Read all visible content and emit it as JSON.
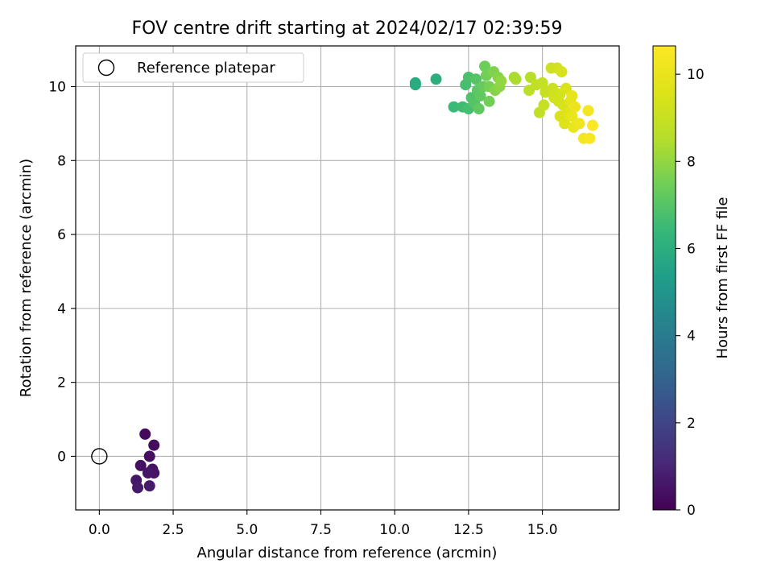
{
  "chart_data": {
    "type": "scatter",
    "title": "FOV centre drift starting at 2024/02/17 02:39:59",
    "xlabel": "Angular distance from reference (arcmin)",
    "ylabel": "Rotation from reference (arcmin)",
    "colorbar_label": "Hours from first FF file",
    "colormap": "viridis",
    "xlim": [
      -0.8,
      17.6
    ],
    "ylim": [
      -1.45,
      11.1
    ],
    "clim": [
      0,
      10.65
    ],
    "x_ticks": [
      0.0,
      2.5,
      5.0,
      7.5,
      10.0,
      12.5,
      15.0
    ],
    "x_tick_labels": [
      "0.0",
      "2.5",
      "5.0",
      "7.5",
      "10.0",
      "12.5",
      "15.0"
    ],
    "y_ticks": [
      0,
      2,
      4,
      6,
      8,
      10
    ],
    "y_tick_labels": [
      "0",
      "2",
      "4",
      "6",
      "8",
      "10"
    ],
    "colorbar_ticks": [
      0,
      2,
      4,
      6,
      8,
      10
    ],
    "colorbar_tick_labels": [
      "0",
      "2",
      "4",
      "6",
      "8",
      "10"
    ],
    "grid": true,
    "legend": {
      "placement": "top-left",
      "entries": [
        "Reference platepar"
      ]
    },
    "reference_point": {
      "name": "Reference platepar",
      "x": 0.0,
      "y": 0.0
    },
    "points": [
      {
        "x": 1.55,
        "y": 0.6,
        "c": 0.2
      },
      {
        "x": 1.85,
        "y": 0.3,
        "c": 0.3
      },
      {
        "x": 1.7,
        "y": 0.0,
        "c": 0.35
      },
      {
        "x": 1.4,
        "y": -0.25,
        "c": 0.4
      },
      {
        "x": 1.8,
        "y": -0.35,
        "c": 0.45
      },
      {
        "x": 1.85,
        "y": -0.45,
        "c": 0.5
      },
      {
        "x": 1.65,
        "y": -0.45,
        "c": 0.55
      },
      {
        "x": 1.25,
        "y": -0.65,
        "c": 0.6
      },
      {
        "x": 1.3,
        "y": -0.85,
        "c": 0.65
      },
      {
        "x": 1.7,
        "y": -0.8,
        "c": 0.7
      },
      {
        "x": 10.7,
        "y": 10.1,
        "c": 5.8
      },
      {
        "x": 10.7,
        "y": 10.05,
        "c": 5.9
      },
      {
        "x": 11.4,
        "y": 10.2,
        "c": 6.0
      },
      {
        "x": 12.0,
        "y": 9.45,
        "c": 6.5
      },
      {
        "x": 12.3,
        "y": 9.45,
        "c": 6.6
      },
      {
        "x": 12.4,
        "y": 10.05,
        "c": 6.7
      },
      {
        "x": 12.5,
        "y": 9.4,
        "c": 6.7
      },
      {
        "x": 12.5,
        "y": 10.25,
        "c": 6.8
      },
      {
        "x": 12.6,
        "y": 9.7,
        "c": 6.9
      },
      {
        "x": 12.7,
        "y": 9.55,
        "c": 7.0
      },
      {
        "x": 12.75,
        "y": 10.2,
        "c": 7.0
      },
      {
        "x": 12.8,
        "y": 9.9,
        "c": 7.1
      },
      {
        "x": 12.85,
        "y": 9.4,
        "c": 7.2
      },
      {
        "x": 12.9,
        "y": 9.75,
        "c": 7.2
      },
      {
        "x": 13.0,
        "y": 10.0,
        "c": 7.3
      },
      {
        "x": 13.05,
        "y": 10.55,
        "c": 7.4
      },
      {
        "x": 13.1,
        "y": 10.3,
        "c": 7.5
      },
      {
        "x": 13.2,
        "y": 9.6,
        "c": 7.5
      },
      {
        "x": 13.2,
        "y": 10.0,
        "c": 7.6
      },
      {
        "x": 13.35,
        "y": 10.4,
        "c": 7.7
      },
      {
        "x": 13.4,
        "y": 9.9,
        "c": 7.8
      },
      {
        "x": 13.5,
        "y": 10.25,
        "c": 7.8
      },
      {
        "x": 13.55,
        "y": 10.0,
        "c": 7.9
      },
      {
        "x": 13.6,
        "y": 10.15,
        "c": 8.0
      },
      {
        "x": 14.05,
        "y": 10.25,
        "c": 8.3
      },
      {
        "x": 14.1,
        "y": 10.2,
        "c": 8.4
      },
      {
        "x": 14.6,
        "y": 10.25,
        "c": 8.6
      },
      {
        "x": 14.55,
        "y": 9.9,
        "c": 8.7
      },
      {
        "x": 14.8,
        "y": 10.05,
        "c": 8.8
      },
      {
        "x": 14.9,
        "y": 9.3,
        "c": 8.8
      },
      {
        "x": 15.0,
        "y": 10.1,
        "c": 8.9
      },
      {
        "x": 15.05,
        "y": 9.5,
        "c": 9.0
      },
      {
        "x": 15.1,
        "y": 9.85,
        "c": 9.0
      },
      {
        "x": 15.3,
        "y": 10.5,
        "c": 9.1
      },
      {
        "x": 15.35,
        "y": 9.95,
        "c": 9.1
      },
      {
        "x": 15.4,
        "y": 9.7,
        "c": 9.2
      },
      {
        "x": 15.5,
        "y": 10.5,
        "c": 9.2
      },
      {
        "x": 15.55,
        "y": 9.6,
        "c": 9.3
      },
      {
        "x": 15.6,
        "y": 9.8,
        "c": 9.3
      },
      {
        "x": 15.65,
        "y": 10.4,
        "c": 9.4
      },
      {
        "x": 15.7,
        "y": 9.5,
        "c": 9.4
      },
      {
        "x": 15.6,
        "y": 9.2,
        "c": 9.5
      },
      {
        "x": 15.8,
        "y": 9.95,
        "c": 9.5
      },
      {
        "x": 15.75,
        "y": 9.0,
        "c": 9.6
      },
      {
        "x": 15.85,
        "y": 9.3,
        "c": 9.7
      },
      {
        "x": 15.95,
        "y": 9.6,
        "c": 9.8
      },
      {
        "x": 16.0,
        "y": 9.75,
        "c": 9.9
      },
      {
        "x": 16.0,
        "y": 9.2,
        "c": 10.0
      },
      {
        "x": 16.05,
        "y": 8.9,
        "c": 10.0
      },
      {
        "x": 16.1,
        "y": 9.45,
        "c": 10.1
      },
      {
        "x": 16.25,
        "y": 9.0,
        "c": 10.2
      },
      {
        "x": 16.4,
        "y": 8.6,
        "c": 10.3
      },
      {
        "x": 16.55,
        "y": 9.35,
        "c": 10.4
      },
      {
        "x": 16.6,
        "y": 8.6,
        "c": 10.5
      },
      {
        "x": 16.7,
        "y": 8.95,
        "c": 10.6
      }
    ]
  }
}
